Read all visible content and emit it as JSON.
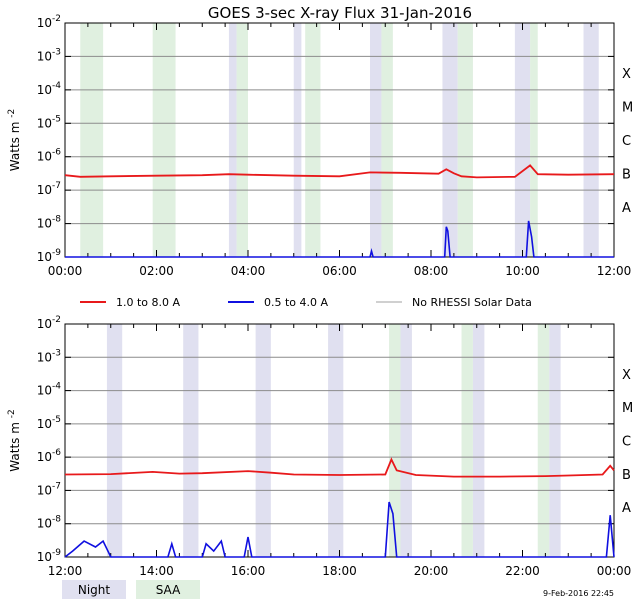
{
  "title": "GOES 3-sec X-ray Flux   31-Jan-2016",
  "ylabel_main": "Watts m",
  "ylabel_sup": "-2",
  "footer_date": "9-Feb-2016 22:45",
  "colors": {
    "long": "#e8191b",
    "short": "#1010e0",
    "norhessi": "#a0a0a0",
    "night": "#e0e0f0",
    "saa": "#e0f0e0",
    "grid": "#8c8c8c"
  },
  "legend_lines": [
    {
      "label": "1.0 to 8.0 A",
      "color": "#e8191b"
    },
    {
      "label": "0.5 to 4.0 A",
      "color": "#1010e0"
    },
    {
      "label": "No RHESSI Solar Data",
      "color": "#a0a0a0"
    }
  ],
  "legend_boxes": [
    {
      "label": "Night",
      "color": "#e0e0f0"
    },
    {
      "label": "SAA",
      "color": "#e0f0e0"
    }
  ],
  "chart_data": [
    {
      "type": "line",
      "title": "GOES 3-sec X-ray Flux   31-Jan-2016",
      "ylabel": "Watts m-2",
      "yscale": "log",
      "ylim": [
        1e-09,
        0.01
      ],
      "xlim": [
        "00:00",
        "12:00"
      ],
      "x_ticks": [
        "00:00",
        "02:00",
        "04:00",
        "06:00",
        "08:00",
        "10:00",
        "12:00"
      ],
      "y_ticks": [
        "10-9",
        "10-8",
        "10-7",
        "10-6",
        "10-5",
        "10-4",
        "10-3",
        "10-2"
      ],
      "flare_class_labels": [
        "A",
        "B",
        "C",
        "M",
        "X"
      ],
      "night_bands": [
        [
          "03:35",
          "03:45"
        ],
        [
          "05:00",
          "05:10"
        ],
        [
          "06:40",
          "06:55"
        ],
        [
          "08:15",
          "08:35"
        ],
        [
          "09:50",
          "10:10"
        ],
        [
          "11:20",
          "11:40"
        ]
      ],
      "saa_bands": [
        [
          "00:20",
          "00:50"
        ],
        [
          "01:55",
          "02:25"
        ],
        [
          "03:45",
          "04:00"
        ],
        [
          "05:15",
          "05:35"
        ],
        [
          "06:55",
          "07:10"
        ],
        [
          "08:35",
          "08:55"
        ],
        [
          "10:10",
          "10:20"
        ]
      ],
      "series": [
        {
          "name": "1.0 to 8.0 A",
          "color": "#e8191b",
          "points": [
            [
              "00:00",
              2.8e-07
            ],
            [
              "00:20",
              2.5e-07
            ],
            [
              "01:00",
              2.6e-07
            ],
            [
              "02:00",
              2.7e-07
            ],
            [
              "03:00",
              2.8e-07
            ],
            [
              "03:35",
              3e-07
            ],
            [
              "04:00",
              2.9e-07
            ],
            [
              "05:00",
              2.7e-07
            ],
            [
              "06:00",
              2.6e-07
            ],
            [
              "06:40",
              3.4e-07
            ],
            [
              "07:20",
              3.3e-07
            ],
            [
              "08:10",
              3.1e-07
            ],
            [
              "08:20",
              4.2e-07
            ],
            [
              "08:30",
              3.2e-07
            ],
            [
              "08:40",
              2.6e-07
            ],
            [
              "09:00",
              2.4e-07
            ],
            [
              "09:50",
              2.5e-07
            ],
            [
              "10:10",
              5.5e-07
            ],
            [
              "10:20",
              3e-07
            ],
            [
              "11:00",
              2.9e-07
            ],
            [
              "12:00",
              3e-07
            ]
          ]
        },
        {
          "name": "0.5 to 4.0 A",
          "color": "#1010e0",
          "points": [
            [
              "00:00",
              1e-09
            ],
            [
              "06:40",
              1e-09
            ],
            [
              "06:42",
              1.5e-09
            ],
            [
              "06:44",
              1e-09
            ],
            [
              "08:18",
              1e-09
            ],
            [
              "08:20",
              8e-09
            ],
            [
              "08:22",
              6e-09
            ],
            [
              "08:25",
              1e-09
            ],
            [
              "10:05",
              1e-09
            ],
            [
              "10:08",
              1.2e-08
            ],
            [
              "10:12",
              4e-09
            ],
            [
              "10:15",
              1e-09
            ],
            [
              "12:00",
              1e-09
            ]
          ]
        }
      ]
    },
    {
      "type": "line",
      "title": "",
      "ylabel": "Watts m-2",
      "yscale": "log",
      "ylim": [
        1e-09,
        0.01
      ],
      "xlim": [
        "12:00",
        "00:00"
      ],
      "x_ticks": [
        "12:00",
        "14:00",
        "16:00",
        "18:00",
        "20:00",
        "22:00",
        "00:00"
      ],
      "y_ticks": [
        "10-9",
        "10-8",
        "10-7",
        "10-6",
        "10-5",
        "10-4",
        "10-3",
        "10-2"
      ],
      "flare_class_labels": [
        "A",
        "B",
        "C",
        "M",
        "X"
      ],
      "night_bands": [
        [
          "12:55",
          "13:15"
        ],
        [
          "14:35",
          "14:55"
        ],
        [
          "16:10",
          "16:30"
        ],
        [
          "17:45",
          "18:05"
        ],
        [
          "19:20",
          "19:35"
        ],
        [
          "20:55",
          "21:10"
        ],
        [
          "22:35",
          "22:50"
        ]
      ],
      "saa_bands": [
        [
          "19:05",
          "19:20"
        ],
        [
          "20:40",
          "20:55"
        ],
        [
          "22:20",
          "22:35"
        ]
      ],
      "series": [
        {
          "name": "1.0 to 8.0 A",
          "color": "#e8191b",
          "points": [
            [
              "12:00",
              3e-07
            ],
            [
              "13:00",
              3.1e-07
            ],
            [
              "13:55",
              3.6e-07
            ],
            [
              "14:30",
              3.2e-07
            ],
            [
              "15:00",
              3.3e-07
            ],
            [
              "16:00",
              3.8e-07
            ],
            [
              "16:30",
              3.4e-07
            ],
            [
              "17:00",
              3e-07
            ],
            [
              "18:00",
              2.9e-07
            ],
            [
              "19:00",
              3e-07
            ],
            [
              "19:08",
              8.5e-07
            ],
            [
              "19:15",
              4e-07
            ],
            [
              "19:40",
              2.9e-07
            ],
            [
              "20:30",
              2.6e-07
            ],
            [
              "21:30",
              2.6e-07
            ],
            [
              "22:30",
              2.7e-07
            ],
            [
              "23:00",
              2.8e-07
            ],
            [
              "23:45",
              3e-07
            ],
            [
              "23:55",
              5.5e-07
            ],
            [
              "24:00",
              4e-07
            ]
          ]
        },
        {
          "name": "0.5 to 4.0 A",
          "color": "#1010e0",
          "points": [
            [
              "12:00",
              1e-09
            ],
            [
              "12:10",
              1.5e-09
            ],
            [
              "12:25",
              3e-09
            ],
            [
              "12:40",
              2e-09
            ],
            [
              "12:50",
              3e-09
            ],
            [
              "13:00",
              1e-09
            ],
            [
              "14:15",
              1e-09
            ],
            [
              "14:20",
              2.5e-09
            ],
            [
              "14:25",
              1e-09
            ],
            [
              "15:00",
              1e-09
            ],
            [
              "15:05",
              2.5e-09
            ],
            [
              "15:15",
              1.5e-09
            ],
            [
              "15:25",
              3e-09
            ],
            [
              "15:30",
              1e-09
            ],
            [
              "15:55",
              1e-09
            ],
            [
              "16:00",
              4e-09
            ],
            [
              "16:05",
              1e-09
            ],
            [
              "19:00",
              1e-09
            ],
            [
              "19:05",
              4.5e-08
            ],
            [
              "19:10",
              2e-08
            ],
            [
              "19:15",
              1e-09
            ],
            [
              "23:50",
              1e-09
            ],
            [
              "23:55",
              1.8e-08
            ],
            [
              "24:00",
              1e-09
            ]
          ]
        }
      ]
    }
  ]
}
